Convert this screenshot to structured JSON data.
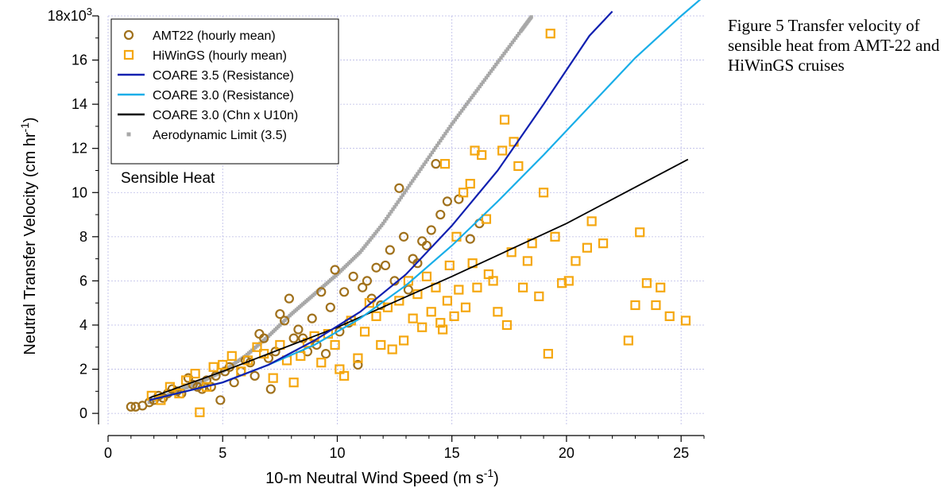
{
  "caption": "Figure 5 Transfer velocity of sensible heat from AMT-22 and HiWinGS cruises",
  "chart_data": {
    "type": "scatter",
    "xlabel_main": "10-m Neutral Wind Speed (m s",
    "xlabel_sup": "-1",
    "xlabel_end": ")",
    "ylabel_main": "Neutral Transfer Velocity (cm hr",
    "ylabel_sup": "-1",
    "ylabel_end": ")",
    "xlim": [
      0,
      26
    ],
    "ylim": [
      -0.5,
      18
    ],
    "x_ticks": [
      0,
      5,
      10,
      15,
      20,
      25
    ],
    "x_tick_labels": [
      "0",
      "5",
      "10",
      "15",
      "20",
      "25"
    ],
    "y_ticks": [
      0,
      2,
      4,
      6,
      8,
      10,
      12,
      14,
      16,
      18
    ],
    "y_tick_labels": [
      "0",
      "2",
      "4",
      "6",
      "8",
      "10",
      "12",
      "14",
      "16",
      "18x10"
    ],
    "y_top_sup": "3",
    "grid": true,
    "legend_position": "top-left",
    "annotation": "Sensible Heat",
    "colors": {
      "amt22": "#a0711c",
      "hiwings": "#f5a70f",
      "coare35": "#1020b0",
      "coare30": "#19aee8",
      "chn": "#000000",
      "aero": "#a8a8a8",
      "grid": "#b9b9e6"
    },
    "series": [
      {
        "name": "AMT22 (hourly mean)",
        "marker": "circle",
        "points": [
          [
            1.0,
            0.3
          ],
          [
            1.2,
            0.3
          ],
          [
            1.5,
            0.35
          ],
          [
            1.8,
            0.5
          ],
          [
            2.0,
            0.6
          ],
          [
            2.2,
            0.8
          ],
          [
            2.4,
            0.7
          ],
          [
            2.6,
            0.9
          ],
          [
            2.8,
            1.1
          ],
          [
            3.0,
            1.0
          ],
          [
            3.2,
            0.9
          ],
          [
            3.5,
            1.6
          ],
          [
            3.7,
            1.3
          ],
          [
            3.9,
            1.2
          ],
          [
            4.1,
            1.1
          ],
          [
            4.3,
            1.5
          ],
          [
            4.5,
            1.2
          ],
          [
            4.7,
            1.7
          ],
          [
            4.9,
            0.6
          ],
          [
            5.1,
            1.9
          ],
          [
            5.3,
            2.1
          ],
          [
            5.5,
            1.4
          ],
          [
            5.8,
            1.9
          ],
          [
            6.0,
            2.4
          ],
          [
            6.2,
            2.3
          ],
          [
            6.4,
            1.7
          ],
          [
            6.6,
            3.6
          ],
          [
            6.8,
            3.4
          ],
          [
            7.0,
            2.5
          ],
          [
            7.1,
            1.1
          ],
          [
            7.3,
            2.8
          ],
          [
            7.5,
            4.5
          ],
          [
            7.7,
            4.2
          ],
          [
            7.9,
            5.2
          ],
          [
            8.1,
            3.4
          ],
          [
            8.3,
            3.8
          ],
          [
            8.5,
            3.4
          ],
          [
            8.7,
            2.8
          ],
          [
            8.9,
            4.3
          ],
          [
            9.1,
            3.1
          ],
          [
            9.3,
            5.5
          ],
          [
            9.5,
            2.7
          ],
          [
            9.7,
            4.8
          ],
          [
            9.9,
            6.5
          ],
          [
            10.1,
            3.7
          ],
          [
            10.3,
            5.5
          ],
          [
            10.5,
            4.1
          ],
          [
            10.7,
            6.2
          ],
          [
            10.9,
            2.2
          ],
          [
            11.1,
            5.7
          ],
          [
            11.3,
            6.0
          ],
          [
            11.5,
            5.2
          ],
          [
            11.7,
            6.6
          ],
          [
            11.9,
            4.9
          ],
          [
            12.1,
            6.7
          ],
          [
            12.3,
            7.4
          ],
          [
            12.5,
            6.0
          ],
          [
            12.7,
            10.2
          ],
          [
            12.9,
            8.0
          ],
          [
            13.1,
            5.6
          ],
          [
            13.3,
            7.0
          ],
          [
            13.5,
            6.8
          ],
          [
            13.7,
            7.8
          ],
          [
            13.9,
            7.6
          ],
          [
            14.1,
            8.3
          ],
          [
            14.3,
            11.3
          ],
          [
            14.5,
            9.0
          ],
          [
            14.8,
            9.6
          ],
          [
            15.3,
            9.7
          ],
          [
            15.8,
            7.9
          ],
          [
            16.2,
            8.6
          ]
        ]
      },
      {
        "name": "HiWinGS (hourly mean)",
        "marker": "square",
        "points": [
          [
            1.9,
            0.8
          ],
          [
            2.3,
            0.6
          ],
          [
            2.7,
            1.2
          ],
          [
            3.1,
            0.9
          ],
          [
            3.4,
            1.5
          ],
          [
            3.8,
            1.8
          ],
          [
            4.0,
            0.05
          ],
          [
            4.3,
            1.2
          ],
          [
            4.6,
            2.1
          ],
          [
            5.0,
            2.2
          ],
          [
            5.4,
            2.6
          ],
          [
            5.8,
            1.9
          ],
          [
            6.1,
            2.4
          ],
          [
            6.5,
            3.0
          ],
          [
            6.8,
            2.7
          ],
          [
            7.2,
            1.6
          ],
          [
            7.5,
            3.1
          ],
          [
            7.8,
            2.4
          ],
          [
            8.1,
            1.4
          ],
          [
            8.4,
            2.6
          ],
          [
            8.7,
            3.2
          ],
          [
            9.0,
            3.5
          ],
          [
            9.3,
            2.3
          ],
          [
            9.6,
            3.6
          ],
          [
            9.9,
            3.1
          ],
          [
            10.1,
            2.0
          ],
          [
            10.3,
            1.7
          ],
          [
            10.6,
            4.2
          ],
          [
            10.9,
            2.5
          ],
          [
            11.2,
            3.7
          ],
          [
            11.4,
            5.0
          ],
          [
            11.7,
            4.4
          ],
          [
            11.9,
            3.1
          ],
          [
            12.2,
            4.8
          ],
          [
            12.4,
            2.9
          ],
          [
            12.7,
            5.1
          ],
          [
            12.9,
            3.3
          ],
          [
            13.1,
            6.0
          ],
          [
            13.3,
            4.3
          ],
          [
            13.5,
            5.4
          ],
          [
            13.7,
            3.9
          ],
          [
            13.9,
            6.2
          ],
          [
            14.1,
            4.6
          ],
          [
            14.3,
            5.7
          ],
          [
            14.5,
            4.1
          ],
          [
            14.6,
            3.8
          ],
          [
            14.7,
            11.3
          ],
          [
            14.8,
            5.1
          ],
          [
            14.9,
            6.7
          ],
          [
            15.1,
            4.4
          ],
          [
            15.2,
            8.0
          ],
          [
            15.3,
            5.6
          ],
          [
            15.5,
            10.0
          ],
          [
            15.6,
            4.8
          ],
          [
            15.8,
            10.4
          ],
          [
            15.9,
            6.8
          ],
          [
            16.0,
            11.9
          ],
          [
            16.1,
            5.7
          ],
          [
            16.3,
            11.7
          ],
          [
            16.5,
            8.8
          ],
          [
            16.6,
            6.3
          ],
          [
            16.8,
            6.0
          ],
          [
            17.0,
            4.6
          ],
          [
            17.2,
            11.9
          ],
          [
            17.3,
            13.3
          ],
          [
            17.4,
            4.0
          ],
          [
            17.6,
            7.3
          ],
          [
            17.7,
            12.3
          ],
          [
            17.9,
            11.2
          ],
          [
            18.1,
            5.7
          ],
          [
            18.3,
            6.9
          ],
          [
            18.5,
            7.7
          ],
          [
            18.8,
            5.3
          ],
          [
            19.0,
            10.0
          ],
          [
            19.2,
            2.7
          ],
          [
            19.3,
            17.2
          ],
          [
            19.5,
            8.0
          ],
          [
            19.8,
            5.9
          ],
          [
            20.1,
            6.0
          ],
          [
            20.4,
            6.9
          ],
          [
            20.9,
            7.5
          ],
          [
            21.1,
            8.7
          ],
          [
            21.6,
            7.7
          ],
          [
            22.7,
            3.3
          ],
          [
            23.0,
            4.9
          ],
          [
            23.2,
            8.2
          ],
          [
            23.5,
            5.9
          ],
          [
            23.9,
            4.9
          ],
          [
            24.1,
            5.7
          ],
          [
            24.5,
            4.4
          ],
          [
            25.2,
            4.2
          ]
        ]
      },
      {
        "name": "COARE 3.5 (Resistance)",
        "line": true,
        "points": [
          [
            1.8,
            0.6
          ],
          [
            3,
            0.9
          ],
          [
            5,
            1.4
          ],
          [
            7,
            2.2
          ],
          [
            9,
            3.3
          ],
          [
            11,
            4.6
          ],
          [
            13,
            6.3
          ],
          [
            15,
            8.5
          ],
          [
            17,
            11.0
          ],
          [
            19,
            14.0
          ],
          [
            21,
            17.1
          ],
          [
            22.0,
            18.2
          ]
        ]
      },
      {
        "name": "COARE 3.0 (Resistance)",
        "line": true,
        "points": [
          [
            1.8,
            0.6
          ],
          [
            3,
            0.9
          ],
          [
            5,
            1.4
          ],
          [
            7,
            2.2
          ],
          [
            9,
            3.1
          ],
          [
            11,
            4.3
          ],
          [
            13,
            5.8
          ],
          [
            15,
            7.6
          ],
          [
            17,
            9.6
          ],
          [
            19,
            11.7
          ],
          [
            21,
            13.9
          ],
          [
            23,
            16.1
          ],
          [
            25,
            18.0
          ],
          [
            25.9,
            18.8
          ]
        ]
      },
      {
        "name": "COARE 3.0 (Chn x U10n)",
        "line": true,
        "points": [
          [
            1.8,
            0.7
          ],
          [
            5,
            1.9
          ],
          [
            10,
            3.9
          ],
          [
            15,
            6.2
          ],
          [
            20,
            8.6
          ],
          [
            25.3,
            11.5
          ]
        ]
      },
      {
        "name": "Aerodynamic Limit (3.5)",
        "marker": "dot",
        "points": [
          [
            1.8,
            0.5
          ],
          [
            3,
            1.0
          ],
          [
            4,
            1.4
          ],
          [
            5,
            1.9
          ],
          [
            6,
            2.6
          ],
          [
            7,
            3.5
          ],
          [
            8,
            4.5
          ],
          [
            9,
            5.4
          ],
          [
            10,
            6.3
          ],
          [
            11,
            7.3
          ],
          [
            12,
            8.6
          ],
          [
            13,
            10.1
          ],
          [
            14,
            11.6
          ],
          [
            15,
            13.1
          ],
          [
            16,
            14.5
          ],
          [
            17,
            15.9
          ],
          [
            18,
            17.3
          ],
          [
            18.5,
            18.0
          ]
        ]
      }
    ]
  }
}
